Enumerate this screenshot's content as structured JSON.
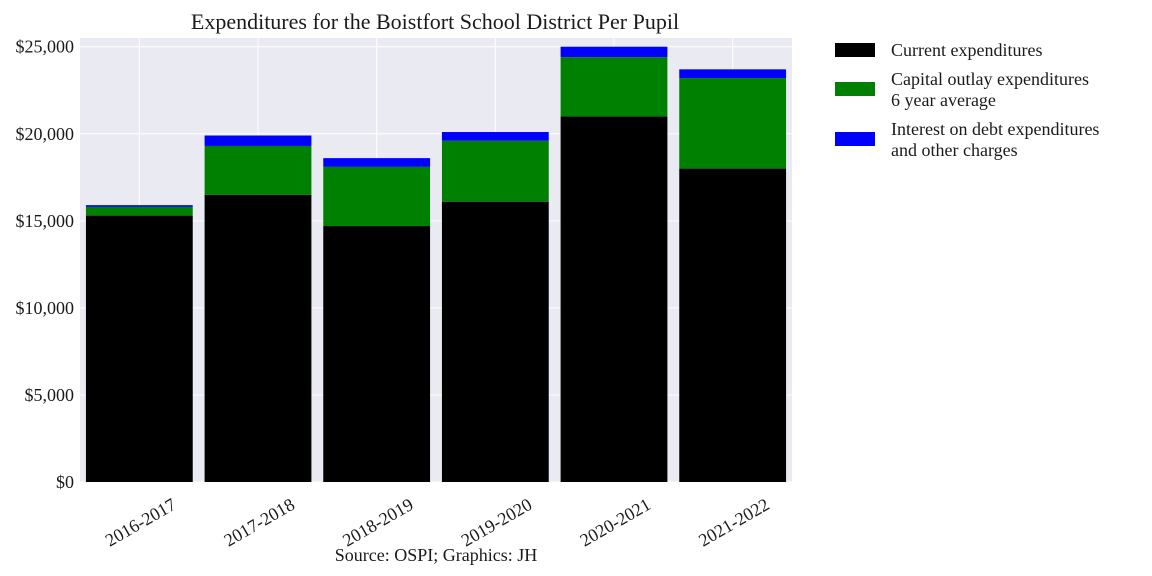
{
  "chart_data": {
    "type": "bar",
    "stacked": true,
    "title": "Expenditures for the Boistfort School District Per Pupil",
    "source": "Source: OSPI; Graphics: JH",
    "categories": [
      "2016-2017",
      "2017-2018",
      "2018-2019",
      "2019-2020",
      "2020-2021",
      "2021-2022"
    ],
    "series": [
      {
        "name": "Current expenditures",
        "color": "#000000",
        "values": [
          15300,
          16500,
          14700,
          16100,
          21000,
          18000
        ]
      },
      {
        "name": "Capital outlay expenditures\n6 year average",
        "color": "#008000",
        "values": [
          500,
          2800,
          3400,
          3500,
          3400,
          5200
        ]
      },
      {
        "name": "Interest on debt expenditures\nand other charges",
        "color": "#0000ff",
        "values": [
          100,
          600,
          500,
          500,
          600,
          500
        ]
      }
    ],
    "ylim": [
      0,
      25500
    ],
    "yticks": [
      0,
      5000,
      10000,
      15000,
      20000,
      25000
    ],
    "ytick_labels": [
      "$0",
      "$5,000",
      "$10,000",
      "$15,000",
      "$20,000",
      "$25,000"
    ],
    "grid": true,
    "legend_position": "outside-right-top",
    "plot_background": "#eaeaf2"
  }
}
